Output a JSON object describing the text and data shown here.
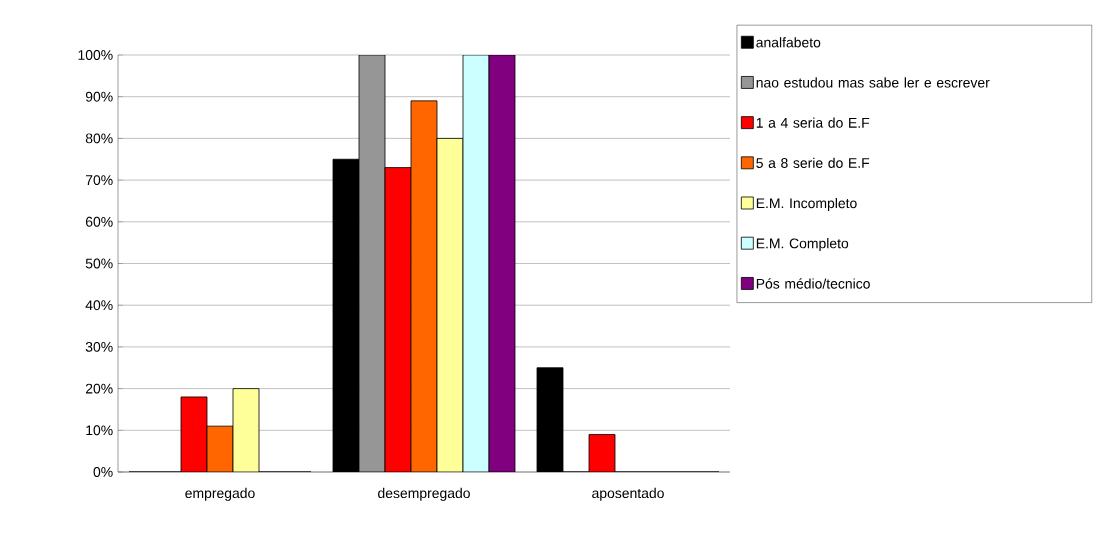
{
  "chart_data": {
    "type": "bar",
    "categories": [
      "empregado",
      "desempregado",
      "aposentado"
    ],
    "series": [
      {
        "name": "analfabeto",
        "color": "#000000",
        "values": [
          0,
          75,
          25
        ]
      },
      {
        "name": "nao estudou mas sabe ler e escrever",
        "color": "#969696",
        "values": [
          0,
          100,
          0
        ]
      },
      {
        "name": "1 a 4 seria do E.F",
        "color": "#ff0000",
        "values": [
          18,
          73,
          9
        ]
      },
      {
        "name": "5 a 8 serie do E.F",
        "color": "#ff6600",
        "values": [
          11,
          89,
          0
        ]
      },
      {
        "name": "E.M. Incompleto",
        "color": "#ffff99",
        "values": [
          20,
          80,
          0
        ]
      },
      {
        "name": "E.M. Completo",
        "color": "#ccffff",
        "values": [
          0,
          100,
          0
        ]
      },
      {
        "name": "Pós médio/tecnico",
        "color": "#800080",
        "values": [
          0,
          100,
          0
        ]
      }
    ],
    "ylim": [
      0,
      100
    ],
    "yticks": [
      {
        "value": 0,
        "label": "0%"
      },
      {
        "value": 10,
        "label": "10%"
      },
      {
        "value": 20,
        "label": "20%"
      },
      {
        "value": 30,
        "label": "30%"
      },
      {
        "value": 40,
        "label": "40%"
      },
      {
        "value": 50,
        "label": "50%"
      },
      {
        "value": 60,
        "label": "60%"
      },
      {
        "value": 70,
        "label": "70%"
      },
      {
        "value": 80,
        "label": "80%"
      },
      {
        "value": 90,
        "label": "90%"
      },
      {
        "value": 100,
        "label": "100%"
      }
    ],
    "grid": "y",
    "legend": "right"
  }
}
